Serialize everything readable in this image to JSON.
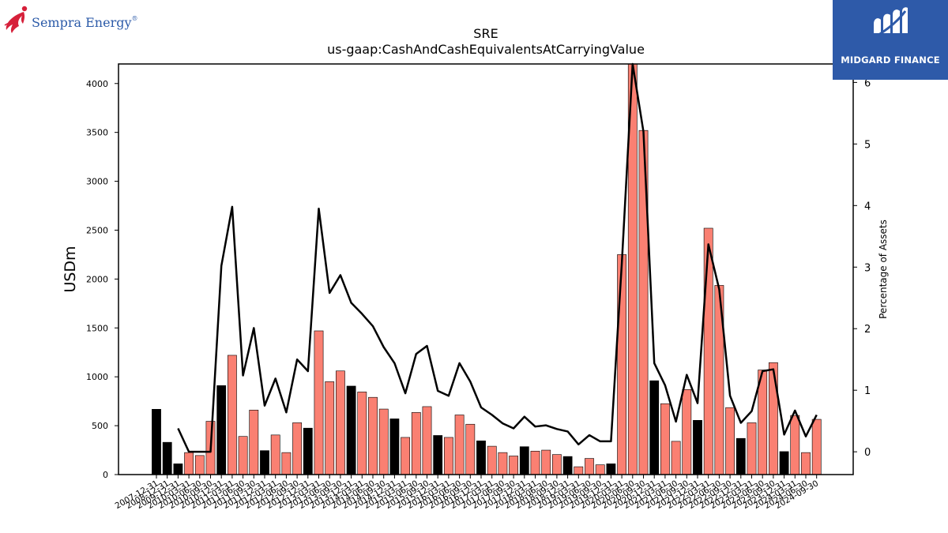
{
  "brand": {
    "left_logo_text": "Sempra Energy",
    "left_logo_mark": "®",
    "right_logo_text": "MIDGARD FINANCE"
  },
  "colors": {
    "bar_black": "#000000",
    "bar_salmon": "#fa8072",
    "line": "#000000",
    "badge_bg": "#2e5aa9",
    "sempra_red": "#d6203a",
    "sempra_blue": "#2b5aa8"
  },
  "chart_data": {
    "type": "bar",
    "title": "SRE",
    "subtitle": "us-gaap:CashAndCashEquivalentsAtCarryingValue",
    "ylabel": "USDm",
    "y2label": "Percentage of Assets",
    "ylim": [
      0,
      4200
    ],
    "y2lim": [
      -0.37,
      6.3
    ],
    "yticks": [
      0,
      500,
      1000,
      1500,
      2000,
      2500,
      3000,
      3500,
      4000
    ],
    "y2ticks": [
      0,
      1,
      2,
      3,
      4,
      5,
      6
    ],
    "grid": false,
    "legend": "none",
    "categories": [
      "2007-12-31",
      "2008-12-31",
      "2009-12-31",
      "2010-03-31",
      "2010-06-30",
      "2010-09-30",
      "2010-12-31",
      "2011-03-31",
      "2011-06-30",
      "2011-09-30",
      "2011-12-31",
      "2012-03-31",
      "2012-06-30",
      "2012-09-30",
      "2012-12-31",
      "2013-03-31",
      "2013-06-30",
      "2013-09-30",
      "2013-12-31",
      "2014-03-31",
      "2014-06-30",
      "2014-09-30",
      "2014-12-31",
      "2015-03-31",
      "2015-06-30",
      "2015-09-30",
      "2015-12-31",
      "2016-03-31",
      "2016-06-30",
      "2016-09-30",
      "2016-12-31",
      "2017-03-31",
      "2017-06-30",
      "2017-09-30",
      "2017-12-31",
      "2018-03-31",
      "2018-06-30",
      "2018-09-30",
      "2018-12-31",
      "2019-03-31",
      "2019-06-30",
      "2019-09-30",
      "2019-12-31",
      "2020-03-31",
      "2020-06-30",
      "2020-09-30",
      "2020-12-31",
      "2021-03-31",
      "2021-06-30",
      "2021-09-30",
      "2021-12-31",
      "2022-03-31",
      "2022-06-30",
      "2022-09-30",
      "2022-12-31",
      "2023-03-31",
      "2023-06-30",
      "2023-09-30",
      "2023-12-31",
      "2024-03-31",
      "2024-06-30",
      "2024-09-30"
    ],
    "tick_labels": [
      "2007-12-31",
      "2008-12-31",
      "2009-12-31",
      "2010-03-31",
      "2010-06-30",
      "2010-09-30",
      "2010-12-31",
      "2011-03-31",
      "2011-06-30",
      "2011-09-30",
      "2011-12-31",
      "2012-03-31",
      "2012-06-30",
      "2012-09-30",
      "2012-12-31",
      "2013-03-31",
      "2013-06-30",
      "2013-09-30",
      "2013-12-31",
      "2014-03-31",
      "2014-06-30",
      "2014-09-30",
      "2014-12-31",
      "2015-03-31",
      "2015-06-30",
      "2015-09-30",
      "2015-12-31",
      "2016-03-31",
      "2016-06-30",
      "2016-09-30",
      "2016-12-31",
      "2017-03-31",
      "2017-06-30",
      "2017-09-30",
      "2017-12-31",
      "2018-03-31",
      "2018-06-30",
      "2018-09-30",
      "2018-12-31",
      "2019-03-31",
      "2019-06-30",
      "2019-09-30",
      "2019-12-31",
      "2020-03-31",
      "2020-06-30",
      "2020-09-30",
      "2020-12-31",
      "2021-03-31",
      "2021-06-30",
      "2021-09-30",
      "2021-12-31",
      "2022-03-31",
      "2022-06-30",
      "2022-09-30",
      "2022-12-31",
      "2023-03-31",
      "2023-06-30",
      "2023-09-30",
      "2023-12-31",
      "2024-03-31",
      "2024-06-30",
      "2024-09-30"
    ],
    "series": [
      {
        "type": "bar",
        "axis": "left",
        "values": [
          668,
          330,
          110,
          225,
          195,
          545,
          910,
          1220,
          390,
          660,
          245,
          405,
          225,
          530,
          475,
          1470,
          950,
          1060,
          905,
          845,
          790,
          670,
          570,
          380,
          635,
          695,
          400,
          380,
          610,
          515,
          345,
          290,
          225,
          190,
          285,
          240,
          250,
          205,
          185,
          80,
          165,
          100,
          110,
          2250,
          4250,
          3520,
          960,
          725,
          340,
          870,
          555,
          2520,
          1935,
          685,
          370,
          530,
          1070,
          1145,
          235,
          605,
          225,
          565
        ],
        "colors": [
          "#000000",
          "#000000",
          "#000000",
          "#fa8072",
          "#fa8072",
          "#fa8072",
          "#000000",
          "#fa8072",
          "#fa8072",
          "#fa8072",
          "#000000",
          "#fa8072",
          "#fa8072",
          "#fa8072",
          "#000000",
          "#fa8072",
          "#fa8072",
          "#fa8072",
          "#000000",
          "#fa8072",
          "#fa8072",
          "#fa8072",
          "#000000",
          "#fa8072",
          "#fa8072",
          "#fa8072",
          "#000000",
          "#fa8072",
          "#fa8072",
          "#fa8072",
          "#000000",
          "#fa8072",
          "#fa8072",
          "#fa8072",
          "#000000",
          "#fa8072",
          "#fa8072",
          "#fa8072",
          "#000000",
          "#fa8072",
          "#fa8072",
          "#fa8072",
          "#000000",
          "#fa8072",
          "#fa8072",
          "#fa8072",
          "#000000",
          "#fa8072",
          "#fa8072",
          "#fa8072",
          "#000000",
          "#fa8072",
          "#fa8072",
          "#fa8072",
          "#000000",
          "#fa8072",
          "#fa8072",
          "#fa8072",
          "#000000",
          "#fa8072",
          "#fa8072",
          "#fa8072"
        ]
      },
      {
        "type": "line",
        "axis": "right",
        "values": [
          null,
          null,
          0.38,
          0.0,
          0.0,
          0.0,
          3.02,
          3.98,
          1.24,
          2.01,
          0.75,
          1.19,
          0.64,
          1.5,
          1.31,
          3.95,
          2.58,
          2.87,
          2.42,
          2.24,
          2.04,
          1.7,
          1.44,
          0.95,
          1.59,
          1.72,
          0.99,
          0.91,
          1.44,
          1.14,
          0.72,
          0.6,
          0.46,
          0.38,
          0.57,
          0.41,
          0.43,
          0.37,
          0.33,
          0.12,
          0.27,
          0.17,
          0.17,
          3.06,
          6.3,
          5.2,
          1.44,
          1.08,
          0.49,
          1.25,
          0.79,
          3.37,
          2.64,
          0.91,
          0.47,
          0.66,
          1.31,
          1.34,
          0.28,
          0.67,
          0.25,
          0.6
        ]
      }
    ]
  }
}
